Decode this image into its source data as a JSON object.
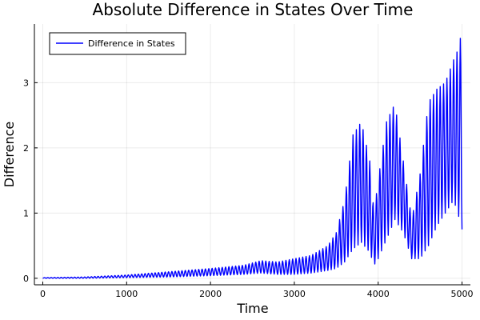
{
  "chart_data": {
    "type": "line",
    "title": "Absolute Difference in States Over Time",
    "xlabel": "Time",
    "ylabel": "Difference",
    "xlim": [
      -100,
      5100
    ],
    "ylim": [
      -0.1,
      3.9
    ],
    "xticks": [
      0,
      1000,
      2000,
      3000,
      4000,
      5000
    ],
    "yticks": [
      0,
      1,
      2,
      3
    ],
    "grid": true,
    "legend_position": "top-left",
    "series": [
      {
        "name": "Difference in States",
        "color": "#0000ff",
        "oscillation_period": 40,
        "envelope": {
          "x": [
            0,
            500,
            1000,
            1500,
            2000,
            2400,
            2600,
            2800,
            3000,
            3200,
            3400,
            3500,
            3600,
            3700,
            3800,
            3900,
            3950,
            4000,
            4100,
            4200,
            4300,
            4400,
            4500,
            4600,
            4700,
            4800,
            4900,
            4950,
            5000
          ],
          "low": [
            0.0,
            0.0,
            0.01,
            0.02,
            0.04,
            0.06,
            0.08,
            0.06,
            0.06,
            0.08,
            0.12,
            0.15,
            0.25,
            0.45,
            0.55,
            0.4,
            0.2,
            0.3,
            0.6,
            0.9,
            0.7,
            0.3,
            0.3,
            0.5,
            0.8,
            1.0,
            1.2,
            1.0,
            0.75
          ],
          "high": [
            0.01,
            0.02,
            0.05,
            0.1,
            0.15,
            0.2,
            0.27,
            0.25,
            0.3,
            0.35,
            0.5,
            0.7,
            1.2,
            2.2,
            2.4,
            1.8,
            1.0,
            1.5,
            2.4,
            2.68,
            1.8,
            0.9,
            1.6,
            2.7,
            2.9,
            3.0,
            3.35,
            3.5,
            3.8
          ]
        }
      }
    ]
  }
}
